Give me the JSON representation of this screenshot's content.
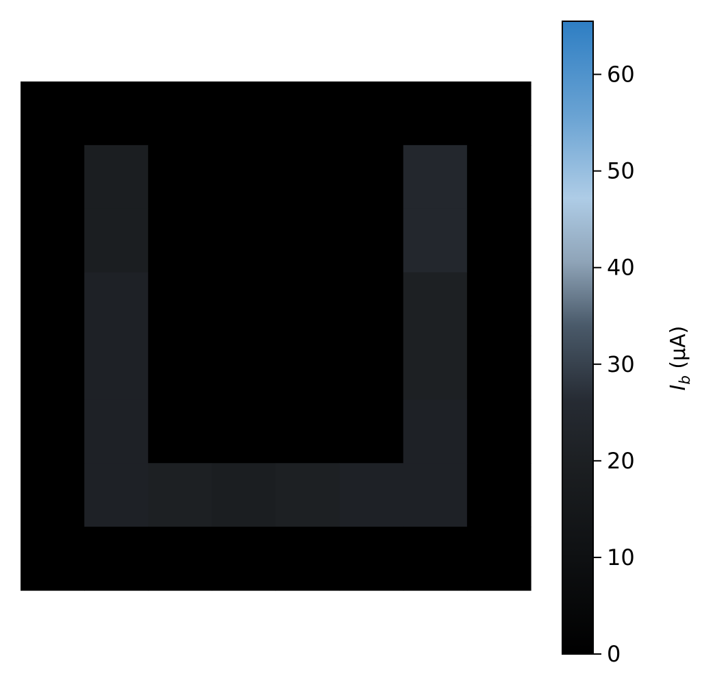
{
  "chart_data": {
    "type": "heatmap",
    "title": "",
    "xlabel": "",
    "ylabel": "",
    "rows": 8,
    "cols": 8,
    "values": [
      [
        0,
        0,
        0,
        0,
        0,
        0,
        0,
        0
      ],
      [
        0,
        19,
        0,
        0,
        0,
        0,
        24,
        0
      ],
      [
        0,
        19,
        0,
        0,
        0,
        0,
        24,
        0
      ],
      [
        0,
        21,
        0,
        0,
        0,
        0,
        20,
        0
      ],
      [
        0,
        21,
        0,
        0,
        0,
        0,
        20,
        0
      ],
      [
        0,
        21,
        0,
        0,
        0,
        0,
        21,
        0
      ],
      [
        0,
        21,
        20,
        19,
        20,
        21,
        21,
        0
      ],
      [
        0,
        0,
        0,
        0,
        0,
        0,
        0,
        0
      ]
    ],
    "colorbar": {
      "label_main": "I",
      "label_sub": "b",
      "label_unit": " (μA)",
      "min": 0,
      "max": 65.5,
      "ticks": [
        0,
        10,
        20,
        30,
        40,
        50,
        60
      ],
      "colormap": [
        {
          "v": 0,
          "color": "#000000"
        },
        {
          "v": 0.15,
          "color": "#0e1012"
        },
        {
          "v": 0.3,
          "color": "#1c1f22"
        },
        {
          "v": 0.4,
          "color": "#262b33"
        },
        {
          "v": 0.52,
          "color": "#4a5a6a"
        },
        {
          "v": 0.62,
          "color": "#8fa4b8"
        },
        {
          "v": 0.72,
          "color": "#aecce6"
        },
        {
          "v": 0.85,
          "color": "#6aa3d3"
        },
        {
          "v": 1.0,
          "color": "#2e7ec3"
        }
      ]
    }
  }
}
